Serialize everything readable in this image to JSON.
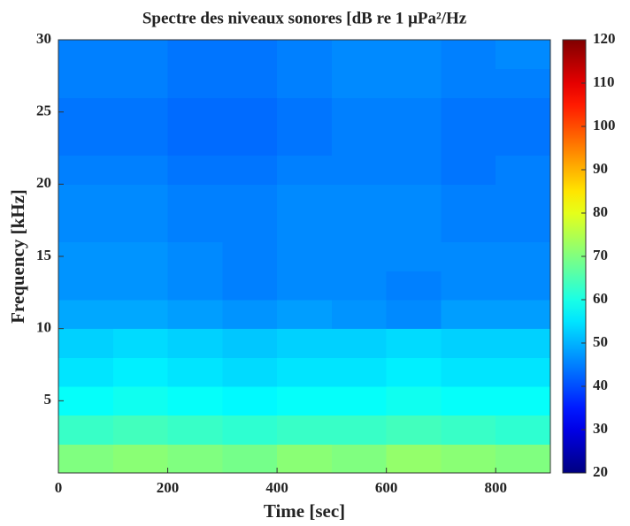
{
  "chart_data": {
    "type": "heatmap",
    "title": "Spectre des niveaux sonores [dB re 1 μPa²/Hz",
    "x_label": "Time [sec]",
    "y_label": "Frequency [kHz]",
    "x_edges": [
      0,
      100,
      200,
      300,
      400,
      500,
      600,
      700,
      800,
      900
    ],
    "y_edges": [
      0,
      2,
      4,
      6,
      8,
      10,
      12,
      14,
      16,
      18,
      20,
      22,
      24,
      26,
      28,
      30
    ],
    "z": [
      [
        70,
        71,
        70,
        69,
        71,
        70,
        72,
        71,
        70
      ],
      [
        63,
        64,
        63,
        62,
        63,
        63,
        64,
        63,
        62
      ],
      [
        58,
        59,
        58,
        57,
        58,
        58,
        59,
        58,
        58
      ],
      [
        55,
        56,
        55,
        54,
        55,
        55,
        56,
        55,
        55
      ],
      [
        53,
        54,
        53,
        52,
        53,
        53,
        54,
        53,
        53
      ],
      [
        49,
        49,
        48,
        47,
        48,
        47,
        46,
        48,
        48
      ],
      [
        47,
        47,
        46,
        45,
        46,
        46,
        45,
        46,
        46
      ],
      [
        47,
        47,
        46,
        45,
        46,
        46,
        46,
        46,
        46
      ],
      [
        46,
        46,
        45,
        45,
        46,
        46,
        46,
        45,
        45
      ],
      [
        46,
        46,
        45,
        45,
        46,
        46,
        46,
        45,
        45
      ],
      [
        45,
        45,
        44,
        44,
        45,
        45,
        45,
        44,
        45
      ],
      [
        44,
        44,
        43,
        43,
        44,
        45,
        45,
        44,
        44
      ],
      [
        44,
        44,
        43,
        43,
        44,
        45,
        45,
        44,
        44
      ],
      [
        45,
        45,
        44,
        44,
        45,
        46,
        46,
        45,
        45
      ],
      [
        45,
        45,
        44,
        44,
        45,
        46,
        46,
        45,
        46
      ]
    ],
    "colormap": "jet",
    "xlim": [
      0,
      900
    ],
    "xticks": [
      0,
      200,
      400,
      600,
      800
    ],
    "ylim": [
      0,
      30
    ],
    "yticks": [
      5,
      10,
      15,
      20,
      25,
      30
    ],
    "clim": [
      20,
      120
    ],
    "cticks": [
      20,
      30,
      40,
      50,
      60,
      70,
      80,
      90,
      100,
      110,
      120
    ]
  }
}
